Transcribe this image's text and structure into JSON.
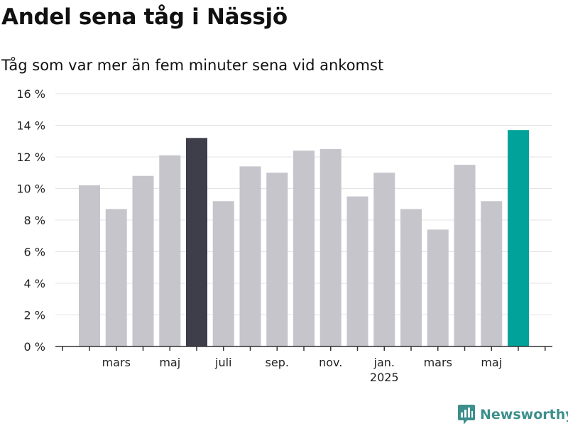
{
  "header": {
    "title": "Andel sena tåg i Nässjö",
    "subtitle": "Tåg som var mer än fem minuter sena vid ankomst"
  },
  "brand": {
    "name": "Newsworthy",
    "icon": "bar-chart-pin-icon",
    "color": "#3d8f8c"
  },
  "colors": {
    "bar": "#c6c5cb",
    "highlight_dark": "#3e3d4a",
    "highlight_teal": "#00a29a",
    "grid": "#e3e3e3",
    "axis": "#333333"
  },
  "chart_data": {
    "type": "bar",
    "title": "Andel sena tåg i Nässjö",
    "subtitle": "Tåg som var mer än fem minuter sena vid ankomst",
    "x": [
      "2024-02",
      "2024-03",
      "2024-04",
      "2024-05",
      "2024-06",
      "2024-07",
      "2024-08",
      "2024-09",
      "2024-10",
      "2024-11",
      "2024-12",
      "2025-01",
      "2025-02",
      "2025-03",
      "2025-04",
      "2025-05",
      "2025-06"
    ],
    "values": [
      10.2,
      8.7,
      10.8,
      12.1,
      13.2,
      9.2,
      11.4,
      11.0,
      12.4,
      12.5,
      9.5,
      11.0,
      8.7,
      7.4,
      11.5,
      9.2,
      13.7
    ],
    "highlight": [
      {
        "x": "2024-06",
        "color": "#3e3d4a"
      },
      {
        "x": "2025-06",
        "color": "#00a29a"
      }
    ],
    "ylim": [
      0,
      16
    ],
    "yticks": [
      {
        "value": 0,
        "label": "0 %"
      },
      {
        "value": 2,
        "label": "2 %"
      },
      {
        "value": 4,
        "label": "4 %"
      },
      {
        "value": 6,
        "label": "6 %"
      },
      {
        "value": 8,
        "label": "8 %"
      },
      {
        "value": 10,
        "label": "10 %"
      },
      {
        "value": 12,
        "label": "12 %"
      },
      {
        "value": 14,
        "label": "14 %"
      },
      {
        "value": 16,
        "label": "16 %"
      }
    ],
    "xticks": [
      {
        "x": "2024-03",
        "label": "mars"
      },
      {
        "x": "2024-05",
        "label": "maj"
      },
      {
        "x": "2024-07",
        "label": "juli"
      },
      {
        "x": "2024-09",
        "label": "sep."
      },
      {
        "x": "2024-11",
        "label": "nov."
      },
      {
        "x": "2025-01",
        "label": "jan.",
        "sublabel": "2025"
      },
      {
        "x": "2025-03",
        "label": "mars"
      },
      {
        "x": "2025-05",
        "label": "maj"
      }
    ],
    "grid": true,
    "legend": "none"
  }
}
